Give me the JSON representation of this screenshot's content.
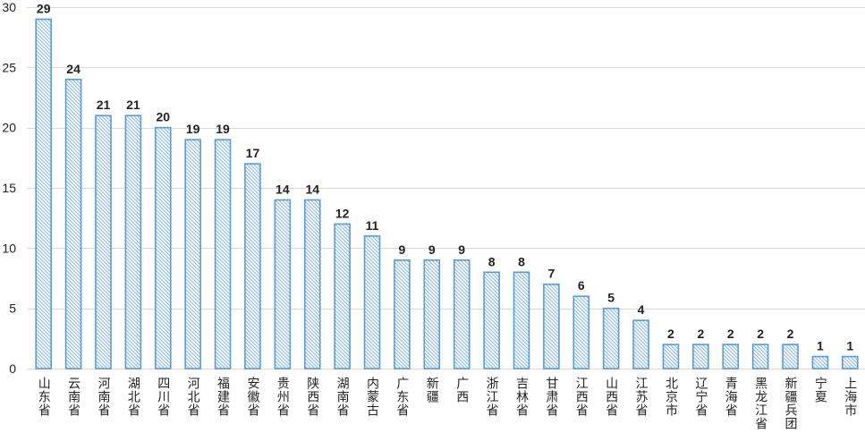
{
  "chart_data": {
    "type": "bar",
    "categories": [
      "山东省",
      "云南省",
      "河南省",
      "湖北省",
      "四川省",
      "河北省",
      "福建省",
      "安徽省",
      "贵州省",
      "陕西省",
      "湖南省",
      "内蒙古",
      "广东省",
      "新疆",
      "广西",
      "浙江省",
      "吉林省",
      "甘肃省",
      "江西省",
      "山西省",
      "江苏省",
      "北京市",
      "辽宁省",
      "青海省",
      "黑龙江省",
      "新疆兵团",
      "宁夏",
      "上海市"
    ],
    "values": [
      29,
      24,
      21,
      21,
      20,
      19,
      19,
      17,
      14,
      14,
      12,
      11,
      9,
      9,
      9,
      8,
      8,
      7,
      6,
      5,
      4,
      2,
      2,
      2,
      2,
      2,
      1,
      1
    ],
    "ylim": [
      0,
      30
    ],
    "yticks": [
      0,
      5,
      10,
      15,
      20,
      25,
      30
    ],
    "grid": true,
    "data_labels": true,
    "bar_color": "#5B9BD5",
    "hatch_color": "#8DB8E2",
    "grid_color": "#D9D9D9"
  }
}
